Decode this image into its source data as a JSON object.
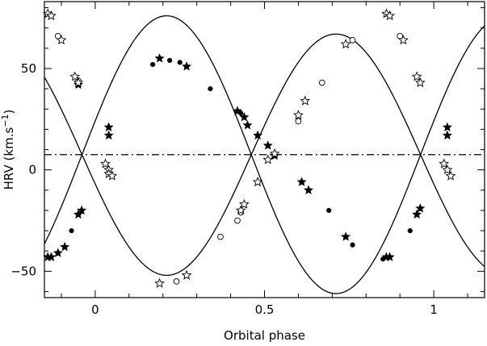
{
  "chart_data": {
    "type": "scatter",
    "title": "",
    "xlabel": "Orbital phase",
    "ylabel": "HRV (km.s",
    "ylabel_sup": "−1",
    "ylabel_tail": ")",
    "xlim": [
      -0.15,
      1.15
    ],
    "ylim": [
      -63,
      83
    ],
    "xticks": [
      {
        "value": 0,
        "label": "0"
      },
      {
        "value": 0.5,
        "label": "0.5"
      },
      {
        "value": 1,
        "label": "1"
      }
    ],
    "yticks": [
      {
        "value": 50,
        "label": "50"
      },
      {
        "value": 0,
        "label": "0"
      },
      {
        "value": -50,
        "label": "−50"
      }
    ],
    "systemic_velocity": 7.5,
    "orbit_models": [
      {
        "gamma": 7.5,
        "K": 59.5,
        "phase0": 0.211,
        "sign": -1
      },
      {
        "gamma": 7.5,
        "K": 68.5,
        "phase0": 0.211,
        "sign": 1
      }
    ],
    "series": [
      {
        "marker": "filled-circle",
        "component": "primary",
        "points": [
          [
            -0.07,
            -30
          ],
          [
            0.17,
            52
          ],
          [
            0.22,
            54
          ],
          [
            0.25,
            53
          ],
          [
            0.34,
            40
          ],
          [
            0.43,
            28
          ],
          [
            0.61,
            -6
          ],
          [
            0.69,
            -20
          ],
          [
            0.76,
            -37
          ],
          [
            0.85,
            -44
          ],
          [
            0.93,
            -30
          ]
        ]
      },
      {
        "marker": "filled-star",
        "component": "primary",
        "points": [
          [
            -0.14,
            -43
          ],
          [
            -0.13,
            -43
          ],
          [
            -0.11,
            -41
          ],
          [
            -0.09,
            -38
          ],
          [
            -0.05,
            -22
          ],
          [
            -0.04,
            -20
          ],
          [
            0.04,
            17
          ],
          [
            0.04,
            21
          ],
          [
            0.19,
            55
          ],
          [
            0.27,
            51
          ],
          [
            0.42,
            29
          ],
          [
            0.44,
            26
          ],
          [
            0.45,
            22
          ],
          [
            0.48,
            17
          ],
          [
            0.51,
            12
          ],
          [
            0.53,
            7
          ],
          [
            0.61,
            -6
          ],
          [
            0.63,
            -10
          ],
          [
            0.74,
            -33
          ],
          [
            0.86,
            -43
          ],
          [
            0.87,
            -43
          ],
          [
            0.95,
            -22
          ],
          [
            0.96,
            -19
          ],
          [
            1.04,
            17
          ],
          [
            1.04,
            21
          ],
          [
            -0.05,
            42
          ]
        ]
      },
      {
        "marker": "open-circle",
        "component": "secondary",
        "points": [
          [
            -0.11,
            66
          ],
          [
            0.24,
            -55
          ],
          [
            0.37,
            -33
          ],
          [
            0.42,
            -25
          ],
          [
            0.43,
            -21
          ],
          [
            0.6,
            24
          ],
          [
            0.67,
            43
          ],
          [
            0.76,
            64
          ],
          [
            0.9,
            66
          ],
          [
            -0.05,
            44
          ]
        ]
      },
      {
        "marker": "open-star",
        "component": "secondary",
        "points": [
          [
            -0.14,
            77
          ],
          [
            -0.13,
            76
          ],
          [
            -0.1,
            64
          ],
          [
            -0.06,
            46
          ],
          [
            -0.05,
            43
          ],
          [
            0.03,
            3
          ],
          [
            0.04,
            0
          ],
          [
            0.04,
            -2
          ],
          [
            0.05,
            -3
          ],
          [
            0.19,
            -56
          ],
          [
            0.27,
            -52
          ],
          [
            0.43,
            -20
          ],
          [
            0.44,
            -17
          ],
          [
            0.48,
            -6
          ],
          [
            0.51,
            5
          ],
          [
            0.53,
            8
          ],
          [
            0.6,
            27
          ],
          [
            0.62,
            34
          ],
          [
            0.74,
            62
          ],
          [
            0.86,
            77
          ],
          [
            0.87,
            76
          ],
          [
            0.91,
            64
          ],
          [
            0.95,
            46
          ],
          [
            0.96,
            43
          ],
          [
            1.03,
            3
          ],
          [
            1.04,
            0
          ],
          [
            1.05,
            -3
          ]
        ]
      }
    ]
  }
}
